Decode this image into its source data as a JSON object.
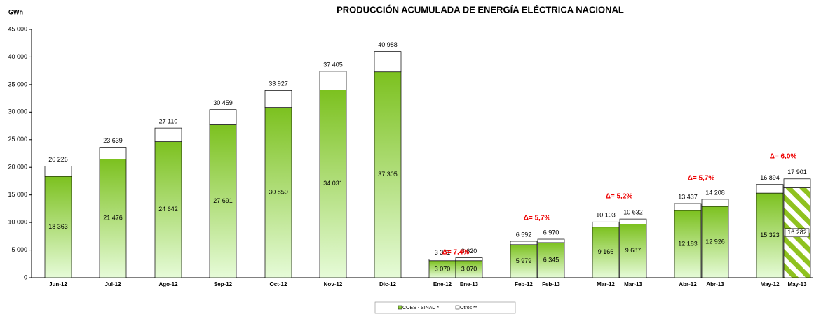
{
  "chart_data": {
    "type": "stacked_bar",
    "title": "PRODUCCIÓN ACUMULADA DE ENERGÍA ELÉCTRICA NACIONAL",
    "y_label": "GWh",
    "categories": [
      "Jun-12",
      "Jul-12",
      "Ago-12",
      "Sep-12",
      "Oct-12",
      "Nov-12",
      "Dic-12",
      "Ene-12",
      "Ene-13",
      "Feb-12",
      "Feb-13",
      "Mar-12",
      "Mar-13",
      "Abr-12",
      "Abr-13",
      "May-12",
      "May-13"
    ],
    "series": [
      {
        "name": "COES - SINAC *",
        "color": "#8fcf3a",
        "values": [
          18363,
          21476,
          24642,
          27691,
          30850,
          34031,
          37305,
          3070,
          3070,
          5979,
          6345,
          9166,
          9687,
          12183,
          12926,
          15323,
          16282
        ],
        "value_labels": [
          "18 363",
          "21 476",
          "24 642",
          "27 691",
          "30 850",
          "34 031",
          "37 305",
          "3 070",
          "3 070",
          "5 979",
          "6 345",
          "9 166",
          "9 687",
          "12 183",
          "12 926",
          "15 323",
          "16 282"
        ]
      },
      {
        "name": "Otros **",
        "color": "#ffffff",
        "values": [
          1863,
          2163,
          2468,
          2768,
          3077,
          3374,
          3683,
          301,
          550,
          613,
          625,
          937,
          945,
          1254,
          1282,
          1571,
          1619
        ]
      }
    ],
    "totals": [
      20226,
      23639,
      27110,
      30459,
      33927,
      37405,
      40988,
      3371,
      3620,
      6592,
      6970,
      10103,
      10632,
      13437,
      14208,
      16894,
      17901
    ],
    "total_labels": [
      "20 226",
      "23 639",
      "27 110",
      "30 459",
      "33 927",
      "37 405",
      "40 988",
      "3 371",
      "3 620",
      "6 592",
      "6 970",
      "10 103",
      "10 632",
      "13 437",
      "14 208",
      "16 894",
      "17 901"
    ],
    "annotations": [
      "Δ= 7,4%",
      "Δ= 5,7%",
      "Δ= 5,2%",
      "Δ= 5,7%",
      "Δ= 6,0%"
    ],
    "ylim": [
      0,
      45000
    ],
    "yticks": [
      0,
      {
        "value": 5000,
        "label": "5 000"
      },
      {
        "value": 10000,
        "label": "10 000"
      },
      {
        "value": 15000,
        "label": "15 000"
      },
      {
        "value": 20000,
        "label": "20 000"
      },
      {
        "value": 25000,
        "label": "25 000"
      },
      {
        "value": 30000,
        "label": "30 000"
      },
      {
        "value": 35000,
        "label": "35 000"
      },
      {
        "value": 40000,
        "label": "40 000"
      },
      {
        "value": 45000,
        "label": "45 000"
      }
    ]
  }
}
